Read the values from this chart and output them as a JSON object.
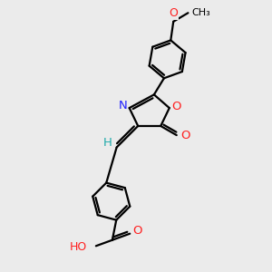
{
  "background_color": "#ebebeb",
  "bond_color": "#000000",
  "N_color": "#2020ff",
  "O_color": "#ff2020",
  "H_color": "#20aaaa",
  "line_width": 1.6,
  "figsize": [
    3.0,
    3.0
  ],
  "dpi": 100,
  "xlim": [
    -1.0,
    1.5
  ],
  "ylim": [
    -1.2,
    2.8
  ]
}
